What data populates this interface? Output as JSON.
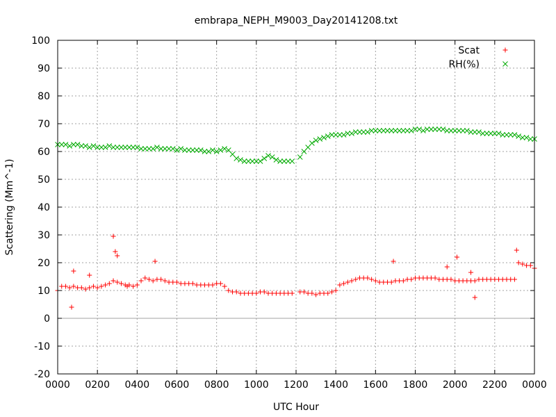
{
  "chart_data": {
    "type": "scatter",
    "title": "embrapa_NEPH_M9003_Day20141208.txt",
    "xlabel": "UTC Hour",
    "ylabel": "Scattering (Mm^-1)",
    "xlim": [
      0,
      2400
    ],
    "ylim": [
      -20,
      100
    ],
    "grid": true,
    "legend_position": "top-right",
    "x_ticks": [
      "0000",
      "0200",
      "0400",
      "0600",
      "0800",
      "1000",
      "1200",
      "1400",
      "1600",
      "1800",
      "2000",
      "2200",
      "0000"
    ],
    "y_ticks": [
      "-20",
      "-10",
      "0",
      "10",
      "20",
      "30",
      "40",
      "50",
      "60",
      "70",
      "80",
      "90",
      "100"
    ],
    "series": [
      {
        "name": "Scat",
        "marker": "+",
        "color": "#ff0000",
        "x": [
          0,
          20,
          40,
          60,
          80,
          100,
          120,
          140,
          160,
          180,
          200,
          220,
          240,
          260,
          280,
          300,
          320,
          340,
          360,
          380,
          400,
          420,
          440,
          460,
          480,
          500,
          520,
          540,
          560,
          580,
          600,
          620,
          640,
          660,
          680,
          700,
          720,
          740,
          760,
          780,
          800,
          820,
          840,
          860,
          880,
          900,
          920,
          940,
          960,
          980,
          1000,
          1020,
          1040,
          1060,
          1080,
          1100,
          1120,
          1140,
          1160,
          1180,
          1220,
          1240,
          1260,
          1280,
          1300,
          1320,
          1340,
          1360,
          1380,
          1400,
          1420,
          1440,
          1460,
          1480,
          1500,
          1520,
          1540,
          1560,
          1580,
          1600,
          1620,
          1640,
          1660,
          1680,
          1700,
          1720,
          1740,
          1760,
          1780,
          1800,
          1820,
          1840,
          1860,
          1880,
          1900,
          1920,
          1940,
          1960,
          1980,
          2000,
          2020,
          2040,
          2060,
          2080,
          2100,
          2120,
          2140,
          2160,
          2180,
          2200,
          2220,
          2240,
          2260,
          2280,
          2300,
          2310,
          2320,
          2340,
          2360,
          2380,
          2400,
          70,
          80,
          160,
          280,
          290,
          300,
          350,
          490,
          1690,
          2010,
          2100,
          2080,
          1960
        ],
        "y": [
          10,
          11.5,
          11.5,
          11,
          11.5,
          11,
          11,
          10.5,
          11,
          11.5,
          11,
          11.5,
          12,
          12.5,
          13.5,
          13,
          12.5,
          12,
          12,
          11.5,
          12,
          13.5,
          14.5,
          14,
          13.5,
          14,
          14,
          13.5,
          13,
          13,
          13,
          12.5,
          12.5,
          12.5,
          12.5,
          12,
          12,
          12,
          12,
          12,
          12.5,
          12.5,
          11.5,
          10,
          9.5,
          9.5,
          9,
          9,
          9,
          9,
          9,
          9.5,
          9.5,
          9,
          9,
          9,
          9,
          9,
          9,
          9,
          9.5,
          9.5,
          9,
          9,
          8.5,
          9,
          9,
          9,
          9.5,
          10,
          12,
          12.5,
          13,
          13.5,
          14,
          14.5,
          14.5,
          14.5,
          14,
          13.5,
          13,
          13,
          13,
          13,
          13.5,
          13.5,
          13.5,
          14,
          14,
          14.5,
          14.5,
          14.5,
          14.5,
          14.5,
          14.5,
          14,
          14,
          14,
          14,
          13.5,
          13.5,
          13.5,
          13.5,
          13.5,
          13.5,
          14,
          14,
          14,
          14,
          14,
          14,
          14,
          14,
          14,
          14,
          24.5,
          20,
          19.5,
          19,
          19,
          18,
          4,
          17,
          15.5,
          29.5,
          24,
          22.5,
          11.5,
          20.5,
          20.5,
          22,
          7.5,
          16.5,
          18.5
        ]
      },
      {
        "name": "RH(%)",
        "marker": "x",
        "color": "#00aa00",
        "x": [
          0,
          20,
          40,
          60,
          80,
          100,
          120,
          140,
          160,
          180,
          200,
          220,
          240,
          260,
          280,
          300,
          320,
          340,
          360,
          380,
          400,
          420,
          440,
          460,
          480,
          500,
          520,
          540,
          560,
          580,
          600,
          620,
          640,
          660,
          680,
          700,
          720,
          740,
          760,
          780,
          800,
          820,
          840,
          860,
          880,
          900,
          920,
          940,
          960,
          980,
          1000,
          1020,
          1040,
          1060,
          1080,
          1100,
          1120,
          1140,
          1160,
          1180,
          1220,
          1240,
          1260,
          1280,
          1300,
          1320,
          1340,
          1360,
          1380,
          1400,
          1420,
          1440,
          1460,
          1480,
          1500,
          1520,
          1540,
          1560,
          1580,
          1600,
          1620,
          1640,
          1660,
          1680,
          1700,
          1720,
          1740,
          1760,
          1780,
          1800,
          1820,
          1840,
          1860,
          1880,
          1900,
          1920,
          1940,
          1960,
          1980,
          2000,
          2020,
          2040,
          2060,
          2080,
          2100,
          2120,
          2140,
          2160,
          2180,
          2200,
          2220,
          2240,
          2260,
          2280,
          2300,
          2320,
          2340,
          2360,
          2380,
          2400
        ],
        "y": [
          62.5,
          62.5,
          62.5,
          62,
          62.5,
          62.5,
          62,
          62,
          61.5,
          62,
          61.5,
          61.5,
          61.5,
          62,
          61.5,
          61.5,
          61.5,
          61.5,
          61.5,
          61.5,
          61.5,
          61,
          61,
          61,
          61,
          61.5,
          61,
          61,
          61,
          61,
          60.5,
          61,
          60.5,
          60.5,
          60.5,
          60.5,
          60.5,
          60,
          60,
          60.5,
          60,
          60.5,
          61,
          60.5,
          59,
          57.5,
          57,
          56.5,
          56.5,
          56.5,
          56.5,
          56.5,
          57.5,
          58.5,
          58,
          57,
          56.5,
          56.5,
          56.5,
          56.5,
          58,
          60,
          61.5,
          63,
          64,
          64.5,
          65,
          65.5,
          66,
          66,
          66,
          66,
          66.5,
          66.5,
          67,
          67,
          67,
          67,
          67.5,
          67.5,
          67.5,
          67.5,
          67.5,
          67.5,
          67.5,
          67.5,
          67.5,
          67.5,
          67.5,
          68,
          68,
          67.5,
          68,
          68,
          68,
          68,
          68,
          67.5,
          67.5,
          67.5,
          67.5,
          67.5,
          67.5,
          67,
          67,
          67,
          66.5,
          66.5,
          66.5,
          66.5,
          66.5,
          66,
          66,
          66,
          66,
          65.5,
          65,
          65,
          64.5,
          64.5
        ]
      }
    ]
  }
}
